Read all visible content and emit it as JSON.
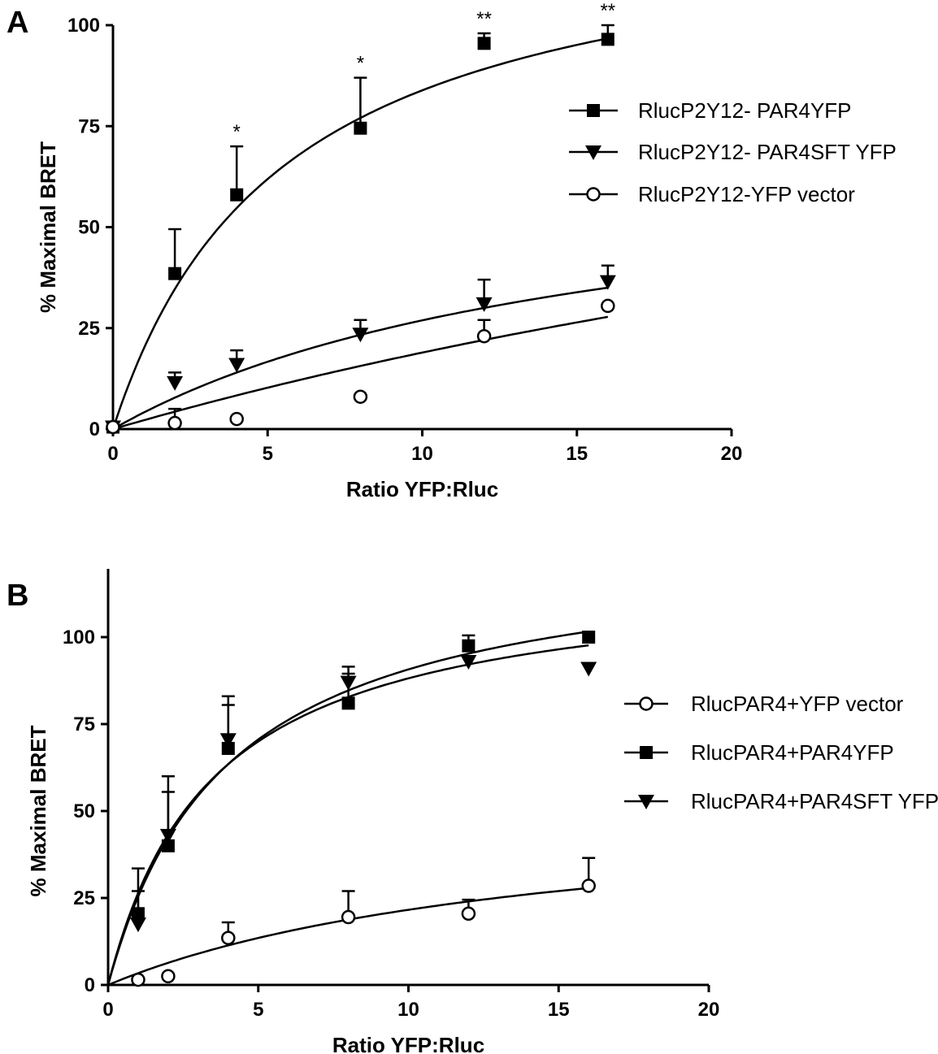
{
  "chart_data": [
    {
      "type": "scatter",
      "panel": "A",
      "xlabel": "Ratio YFP:Rluc",
      "ylabel": "% Maximal BRET",
      "xlim": [
        0,
        20
      ],
      "ylim": [
        0,
        100
      ],
      "xticks": [
        "0",
        "5",
        "10",
        "15",
        "20"
      ],
      "yticks": [
        "0",
        "25",
        "50",
        "75",
        "100"
      ],
      "legend_position": "right",
      "series": [
        {
          "name": "RlucP2Y12- PAR4YFP",
          "marker": "square",
          "x": [
            0,
            2,
            4,
            8,
            12,
            16
          ],
          "y": [
            0.5,
            38.5,
            58,
            74.5,
            95.5,
            96.5
          ],
          "err": [
            0,
            11,
            12,
            12.5,
            2.5,
            3.5
          ],
          "fit": {
            "bmax": 130,
            "kd": 5.5
          },
          "annotations": [
            "",
            "",
            "*",
            "*",
            "**",
            "**"
          ]
        },
        {
          "name": "RlucP2Y12- PAR4SFT YFP",
          "marker": "triangle-down",
          "x": [
            0,
            2,
            4,
            8,
            12,
            16
          ],
          "y": [
            0.5,
            11.5,
            16,
            23.5,
            31,
            36.5
          ],
          "err": [
            0,
            2.5,
            3.5,
            3.5,
            6,
            4
          ],
          "fit": {
            "bmax": 70,
            "kd": 16
          }
        },
        {
          "name": "RlucP2Y12-YFP vector",
          "marker": "circle-open",
          "x": [
            0,
            2,
            4,
            8,
            12,
            16
          ],
          "y": [
            0.5,
            1.5,
            2.5,
            8,
            23,
            30.5
          ],
          "err": [
            0,
            3.5,
            0,
            0,
            4,
            0
          ],
          "fit": {
            "bmax": 125,
            "kd": 56
          }
        }
      ]
    },
    {
      "type": "scatter",
      "panel": "B",
      "xlabel": "Ratio YFP:Rluc",
      "ylabel": "% Maximal BRET",
      "xlim": [
        0,
        20
      ],
      "ylim": [
        0,
        100
      ],
      "xticks": [
        "0",
        "5",
        "10",
        "15",
        "20"
      ],
      "yticks": [
        "0",
        "25",
        "50",
        "75",
        "100"
      ],
      "legend_position": "right",
      "series": [
        {
          "name": "RlucPAR4+YFP vector",
          "marker": "circle-open",
          "x": [
            1,
            2,
            4,
            8,
            12,
            16
          ],
          "y": [
            1.5,
            2.5,
            13.5,
            19.5,
            20.5,
            28.5
          ],
          "err": [
            0,
            0,
            4.5,
            7.5,
            4,
            8
          ],
          "fit": {
            "bmax": 54,
            "kd": 15
          }
        },
        {
          "name": "RlucPAR4+PAR4YFP",
          "marker": "square",
          "x": [
            1,
            2,
            4,
            8,
            12,
            16
          ],
          "y": [
            20.5,
            40,
            68,
            81,
            97.5,
            100
          ],
          "err": [
            6.5,
            15.5,
            12.5,
            8.5,
            3,
            0
          ],
          "fit": {
            "bmax": 127,
            "kd": 4
          }
        },
        {
          "name": "RlucPAR4+PAR4SFT YFP",
          "marker": "triangle-down",
          "x": [
            1,
            2,
            4,
            8,
            12,
            16
          ],
          "y": [
            17.5,
            43,
            70.5,
            87,
            93,
            91
          ],
          "err": [
            16,
            17,
            12.5,
            4.5,
            0,
            0
          ],
          "fit": {
            "bmax": 119,
            "kd": 3.5
          }
        }
      ]
    }
  ]
}
